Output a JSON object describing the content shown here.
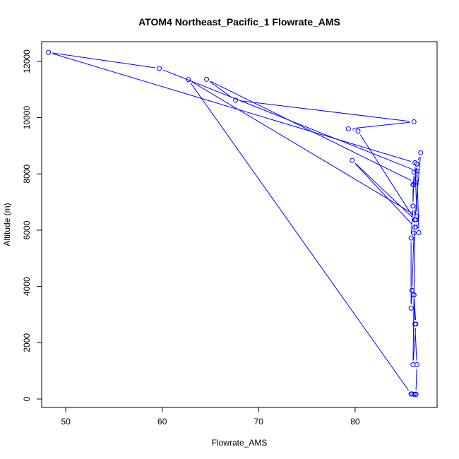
{
  "chart_data": {
    "type": "scatter",
    "title": "ATOM4 Northeast_Pacific_1 Flowrate_AMS",
    "xlabel": "Flowrate_AMS",
    "ylabel": "Altitude (m)",
    "xlim": [
      47.5,
      88.5
    ],
    "ylim": [
      -300,
      12700
    ],
    "xticks": [
      50,
      60,
      70,
      80
    ],
    "yticks": [
      0,
      2000,
      4000,
      6000,
      8000,
      10000,
      12000
    ],
    "xtick_labels": [
      "50",
      "60",
      "70",
      "80"
    ],
    "ytick_labels": [
      "0",
      "2000",
      "4000",
      "6000",
      "8000",
      "10000",
      "12000"
    ],
    "color": "#0000ff",
    "grid": false,
    "series": [
      {
        "x": [
          85.9,
          86.1,
          86.3,
          86.3,
          86.4,
          86.2,
          86.1,
          85.9,
          85.8,
          85.8,
          86.0,
          86.3,
          86.6,
          86.4,
          86.1,
          86.0,
          86.0,
          86.1,
          86.4,
          86.8,
          86.2,
          86.1,
          85.9,
          86.1,
          86.3,
          86.0,
          86.2,
          79.7,
          86.2,
          80.3,
          79.3,
          86.1,
          67.6,
          64.6,
          86.2,
          86.4,
          59.7,
          48.2,
          86.2,
          86.4,
          62.7,
          85.8,
          86.3
        ],
        "y": [
          180,
          170,
          160,
          170,
          1220,
          2660,
          3700,
          3860,
          3230,
          5720,
          6860,
          6370,
          5910,
          8350,
          7620,
          7620,
          6860,
          8060,
          8350,
          8750,
          6370,
          5900,
          3860,
          3700,
          2660,
          1220,
          6100,
          8480,
          6370,
          9520,
          9600,
          9850,
          10620,
          11360,
          7700,
          8100,
          11750,
          12320,
          8400,
          6500,
          11350,
          180,
          170
        ]
      }
    ]
  }
}
